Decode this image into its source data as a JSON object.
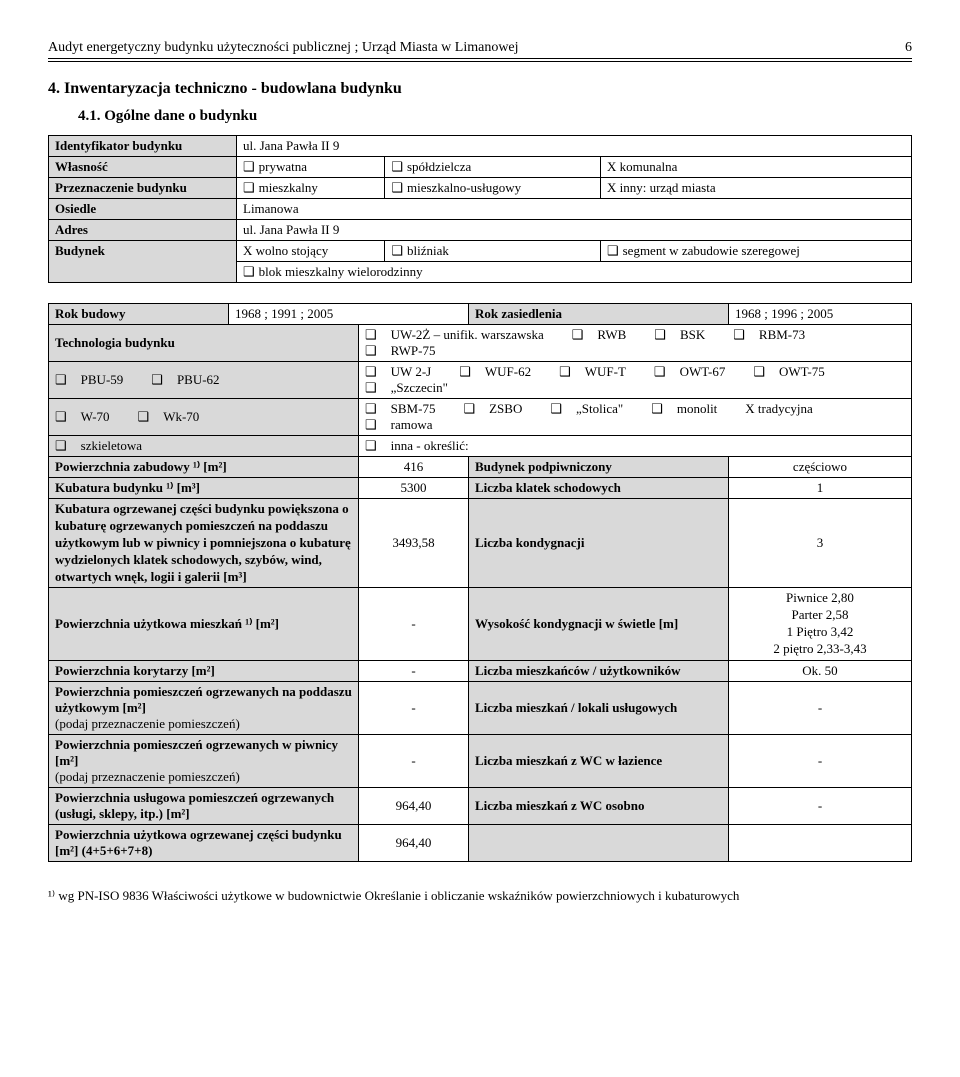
{
  "header": {
    "title": "Audyt energetyczny budynku użyteczności publicznej ; Urząd Miasta w Limanowej",
    "page": "6"
  },
  "section": {
    "number_title": "4. Inwentaryzacja techniczno - budowlana budynku",
    "sub_title": "4.1. Ogólne dane o budynku"
  },
  "table1": {
    "rows": {
      "r1_label": "Identyfikator budynku",
      "r1_value": "ul. Jana Pawła II 9",
      "r2_label": "Własność",
      "r2_opt1": "prywatna",
      "r2_opt2": "spółdzielcza",
      "r2_opt3": "X  komunalna",
      "r3_label": "Przeznaczenie budynku",
      "r3_opt1": "mieszkalny",
      "r3_opt2": "mieszkalno-usługowy",
      "r3_opt3": "X inny: urząd miasta",
      "r4_label": "Osiedle",
      "r4_value": "Limanowa",
      "r5_label": "Adres",
      "r5_value": "ul. Jana Pawła II 9",
      "r6_label": "Budynek",
      "r6_opt1": "X wolno stojący",
      "r6_opt2": "bliźniak",
      "r6_opt3": "segment w zabudowie szeregowej",
      "r6_opt4": "blok mieszkalny wielorodzinny"
    }
  },
  "table2": {
    "r1_l": "Rok budowy",
    "r1_v": "1968 ; 1991 ; 2005",
    "r1_l2": "Rok zasiedlenia",
    "r1_v2": "1968 ; 1996 ; 2005",
    "r2_l": "Technologia budynku",
    "r2_opts": [
      "UW-2Ż – unifik. warszawska",
      "RWB",
      "BSK",
      "RBM-73",
      "RWP-75"
    ],
    "r3_opts_left": [
      "PBU-59",
      "PBU-62"
    ],
    "r3_opts_right": [
      "UW 2-J",
      "WUF-62",
      "WUF-T",
      "OWT-67",
      "OWT-75",
      "„Szczecin\""
    ],
    "r4_opts_left": [
      "W-70",
      "Wk-70"
    ],
    "r4_opts_right": [
      "SBM-75",
      "ZSBO",
      "„Stolica\"",
      "monolit",
      "X tradycyjna",
      "ramowa"
    ],
    "r5_opts_left": [
      "szkieletowa"
    ],
    "r5_opts_right": [
      "inna - określić:"
    ],
    "r6_l": "Powierzchnia zabudowy ¹⁾ [m²]",
    "r6_v": "416",
    "r6_l2": "Budynek podpiwniczony",
    "r6_v2": "częściowo",
    "r7_l": "Kubatura budynku ¹⁾ [m³]",
    "r7_v": "5300",
    "r7_l2": "Liczba klatek schodowych",
    "r7_v2": "1",
    "r8_l": "Kubatura ogrzewanej części budynku powiększona o kubaturę ogrzewanych pomieszczeń na poddaszu użytkowym lub w piwnicy i pomniejszona o kubaturę wydzielonych klatek schodowych, szybów, wind, otwartych wnęk, logii i galerii [m³]",
    "r8_v": "3493,58",
    "r8_l2": "Liczba kondygnacji",
    "r8_v2": "3",
    "r9_l": "Powierzchnia użytkowa mieszkań ¹⁾ [m²]",
    "r9_v": "-",
    "r9_l2": "Wysokość kondygnacji w świetle [m]",
    "r9_v2": "Piwnice 2,80\nParter 2,58\n1 Piętro 3,42\n2 piętro  2,33-3,43",
    "r10_l": "Powierzchnia korytarzy [m²]",
    "r10_v": "-",
    "r10_l2": "Liczba mieszkańców / użytkowników",
    "r10_v2": "Ok. 50",
    "r11_l": "Powierzchnia pomieszczeń ogrzewanych na poddaszu użytkowym [m²]",
    "r11_note": "(podaj przeznaczenie pomieszczeń)",
    "r11_v": "-",
    "r11_l2": "Liczba mieszkań / lokali usługowych",
    "r11_v2": "-",
    "r12_l": "Powierzchnia pomieszczeń ogrzewanych w piwnicy [m²]",
    "r12_note": "(podaj przeznaczenie pomieszczeń)",
    "r12_v": "-",
    "r12_l2": "Liczba mieszkań z WC w łazience",
    "r12_v2": "-",
    "r13_l": "Powierzchnia usługowa pomieszczeń ogrzewanych (usługi, sklepy, itp.) [m²]",
    "r13_v": "964,40",
    "r13_l2": "Liczba mieszkań z WC osobno",
    "r13_v2": "-",
    "r14_l": "Powierzchnia użytkowa ogrzewanej części budynku [m²]   (4+5+6+7+8)",
    "r14_v": "964,40",
    "r14_l2": "",
    "r14_v2": ""
  },
  "footnote": "¹⁾ wg PN-ISO 9836 Właściwości użytkowe w budownictwie Określanie i obliczanie wskaźników powierzchniowych i kubaturowych"
}
